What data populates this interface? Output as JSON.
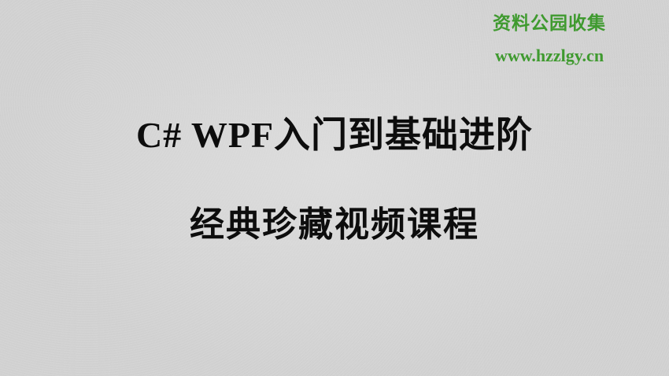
{
  "watermark": {
    "site_name": "资料公园收集",
    "url": "www.hzzlgy.cn",
    "color": "#3f9a2f"
  },
  "title": {
    "line1": "C# WPF入门到基础进阶",
    "line2": "经典珍藏视频课程",
    "color": "#0d0d0d"
  },
  "background_color": "#d4d4d4"
}
